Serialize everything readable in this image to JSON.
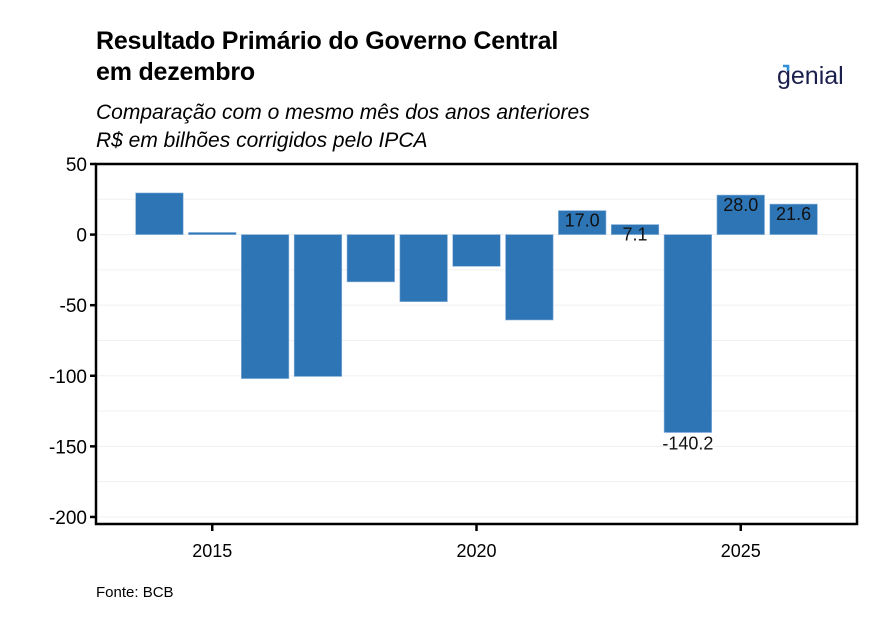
{
  "header": {
    "title_line1": "Resultado Primário do Governo Central",
    "title_line2": "em dezembro",
    "subtitle_line1": "Comparação com o mesmo mês dos anos anteriores",
    "subtitle_line2": "R$ em bilhões corrigidos pelo IPCA"
  },
  "brand": {
    "name": "genial",
    "text_color": "#1b1f4d",
    "accent_color": "#2f8fd8"
  },
  "footer": {
    "source": "Fonte: BCB"
  },
  "chart_data": {
    "type": "bar",
    "title": "Resultado Primário do Governo Central em dezembro",
    "subtitle": "Comparação com o mesmo mês dos anos anteriores — R$ em bilhões corrigidos pelo IPCA",
    "xlabel": "",
    "ylabel": "",
    "x": [
      2014,
      2015,
      2016,
      2017,
      2018,
      2019,
      2020,
      2021,
      2022,
      2023,
      2024,
      2025,
      2026
    ],
    "values": [
      29.5,
      1.5,
      -102.0,
      -100.5,
      -33.5,
      -47.5,
      -22.5,
      -60.5,
      17.0,
      7.1,
      -140.2,
      28.0,
      21.6
    ],
    "data_labels": [
      null,
      null,
      null,
      null,
      null,
      null,
      null,
      null,
      "17.0",
      "7.1",
      "-140.2",
      "28.0",
      "21.6"
    ],
    "xlim": [
      2012.8,
      2027.2
    ],
    "ylim": [
      -205,
      50
    ],
    "xticks": [
      2015,
      2020,
      2025
    ],
    "xtick_labels": [
      "2015",
      "2020",
      "2025"
    ],
    "yticks": [
      50,
      0,
      -50,
      -100,
      -150,
      -200
    ],
    "ytick_labels": [
      "50",
      "0",
      "-50",
      "-100",
      "-150",
      "-200"
    ],
    "minor_gridlines": [
      25,
      -25,
      -75,
      -125,
      -175
    ],
    "grid": true,
    "legend": "none",
    "bar_color": "#2e75b6"
  }
}
